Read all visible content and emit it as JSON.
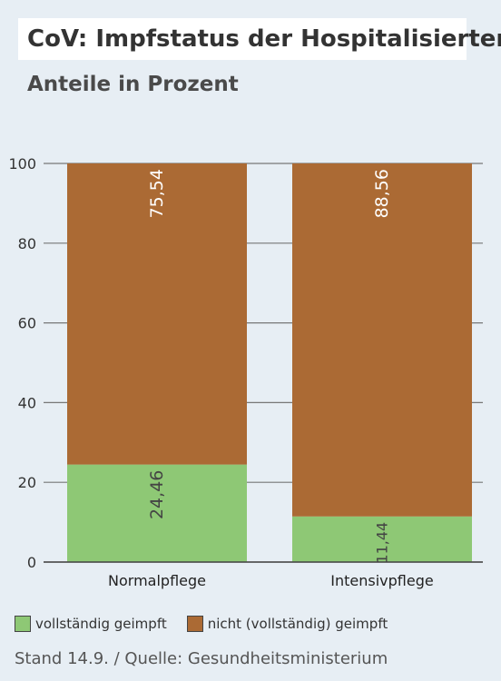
{
  "colors": {
    "vaccinated": "#8ec875",
    "not_vaccinated": "#ab6a34",
    "background": "#e7eef4",
    "grid": "#777777"
  },
  "chart_data": {
    "type": "bar",
    "stacked": true,
    "title": "CoV: Impfstatus der Hospitalisierten",
    "subtitle": "Anteile in Prozent",
    "categories": [
      "Normalpflege",
      "Intensivpflege"
    ],
    "series": [
      {
        "name": "vollständig geimpft",
        "values": [
          24.46,
          11.44
        ],
        "labels": [
          "24,46",
          "11,44"
        ],
        "color": "#8ec875",
        "label_color": "#444444"
      },
      {
        "name": "nicht (vollständig) geimpft",
        "values": [
          75.54,
          88.56
        ],
        "labels": [
          "75,54",
          "88,56"
        ],
        "color": "#ab6a34",
        "label_color": "#ffffff"
      }
    ],
    "ylim": [
      0,
      100
    ],
    "yticks": [
      "0",
      "20",
      "40",
      "60",
      "80",
      "100"
    ],
    "grid": true,
    "legend_position": "bottom-left",
    "source": "Stand 14.9. / Quelle: Gesundheitsministerium"
  }
}
